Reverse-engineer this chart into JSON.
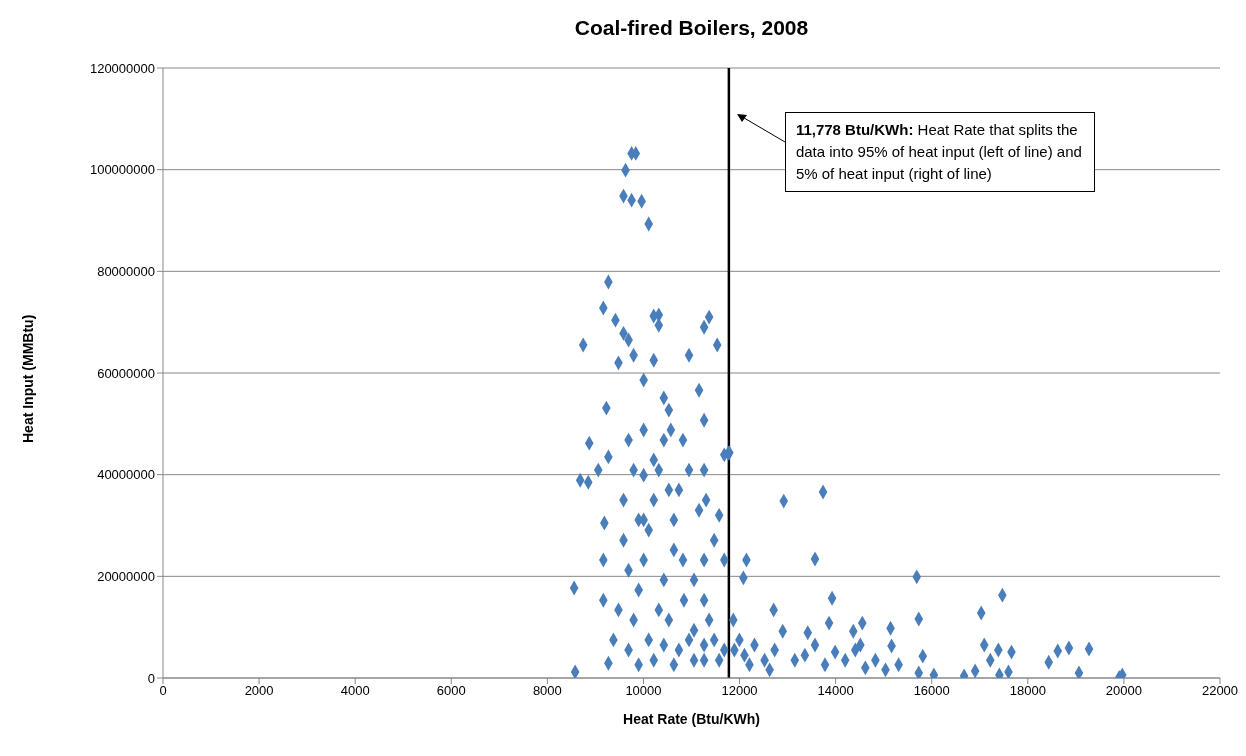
{
  "chart_data": {
    "type": "scatter",
    "title": "Coal-fired Boilers, 2008",
    "xlabel": "Heat Rate (Btu/KWh)",
    "ylabel": "Heat Input (MMBtu)",
    "xlim": [
      0,
      22000
    ],
    "xticks": [
      0,
      2000,
      4000,
      6000,
      8000,
      10000,
      12000,
      14000,
      16000,
      18000,
      20000,
      22000
    ],
    "ylim": [
      0,
      120000000
    ],
    "yticks": [
      0,
      20000000,
      40000000,
      60000000,
      80000000,
      100000000,
      120000000
    ],
    "grid": "y",
    "marker": "diamond",
    "legend": false,
    "ref_lines": [
      {
        "axis": "x",
        "value": 11778,
        "label": "11,778 Btu/KWh:  Heat Rate that splits the data into 95% of heat input (left of line) and 5% of heat input (right of line)",
        "color": "#000000"
      }
    ],
    "series": [
      {
        "color": "#4a7ebb",
        "x": [
          9753,
          9840,
          9627,
          9585,
          9753,
          9962,
          10109,
          9270,
          9165,
          9417,
          10214,
          10319,
          11367,
          11262,
          11535,
          8746,
          9585,
          9690,
          10319,
          9795,
          10214,
          10948,
          9480,
          10004,
          9228,
          10424,
          11157,
          11262,
          10570,
          10822,
          8872,
          9270,
          9690,
          8851,
          8683,
          9060,
          10214,
          10004,
          10528,
          11262,
          11682,
          11766,
          11304,
          11576,
          8557,
          9186,
          9585,
          9165,
          10004,
          10633,
          11262,
          11682,
          9165,
          9375,
          9270,
          8578,
          9900,
          11262,
          11787,
          12920,
          13738,
          12143,
          12080,
          13570,
          15688,
          13926,
          12710,
          11870,
          13863,
          14555,
          14367,
          15143,
          15730,
          17030,
          17470,
          12899,
          13420,
          15164,
          15814,
          17093,
          17387,
          17660,
          18435,
          18623,
          18855,
          19274,
          17219,
          16674,
          16904,
          17408,
          17597,
          19064,
          19966,
          19903,
          16045,
          15730,
          15311,
          12102,
          12311,
          12521,
          12731,
          13150,
          13360,
          13779,
          14199,
          14409,
          14618,
          14828,
          15038,
          11997,
          12206,
          12626,
          13570,
          13989,
          14514,
          9690,
          9795,
          9900,
          10004,
          10109,
          10214,
          10319,
          10424,
          10528,
          10109,
          10319,
          10424,
          10633,
          10738,
          10843,
          11052,
          11262,
          11472,
          11576,
          11052,
          10633,
          10214,
          10424,
          10738,
          10948,
          11262,
          11682,
          11367,
          11052,
          11472,
          11157,
          10948,
          10004,
          9795,
          9585,
          9690,
          9480,
          9900,
          10528,
          10822,
          11892
        ],
        "values": [
          103200000,
          103200000,
          99900000,
          94800000,
          94000000,
          93800000,
          89300000,
          77900000,
          72800000,
          70400000,
          71200000,
          71400000,
          71000000,
          69000000,
          65500000,
          65500000,
          67800000,
          66500000,
          69400000,
          63500000,
          62500000,
          63500000,
          62000000,
          58600000,
          53100000,
          55100000,
          56600000,
          50700000,
          48800000,
          46800000,
          46200000,
          43500000,
          46800000,
          38500000,
          38900000,
          40900000,
          42900000,
          39900000,
          37000000,
          40900000,
          43900000,
          44200000,
          35000000,
          32000000,
          17700000,
          30500000,
          27100000,
          23200000,
          31100000,
          25200000,
          23200000,
          23200000,
          15300000,
          7500000,
          2900000,
          1200000,
          2600000,
          3500000,
          44300000,
          34800000,
          36600000,
          23200000,
          19700000,
          23400000,
          19900000,
          15700000,
          13400000,
          11400000,
          10800000,
          10800000,
          9200000,
          9800000,
          11600000,
          12800000,
          16300000,
          9200000,
          8900000,
          6300000,
          4300000,
          6500000,
          5500000,
          5100000,
          3100000,
          5300000,
          5900000,
          5700000,
          3500000,
          400000,
          1400000,
          600000,
          1200000,
          1000000,
          600000,
          100000,
          600000,
          1000000,
          2600000,
          4500000,
          6500000,
          3500000,
          5500000,
          3500000,
          4500000,
          2600000,
          3500000,
          5500000,
          2000000,
          3500000,
          1600000,
          7500000,
          2600000,
          1600000,
          6500000,
          5100000,
          6500000,
          5500000,
          11400000,
          17300000,
          23200000,
          29100000,
          35000000,
          40900000,
          46800000,
          52700000,
          7500000,
          13400000,
          19300000,
          31100000,
          37000000,
          15300000,
          9400000,
          15300000,
          7500000,
          3500000,
          3500000,
          2600000,
          3500000,
          6500000,
          5500000,
          7500000,
          6500000,
          5500000,
          11400000,
          19300000,
          27100000,
          33000000,
          40900000,
          48800000,
          40900000,
          35000000,
          21200000,
          13400000,
          31100000,
          11400000,
          23200000,
          5500000
        ]
      }
    ]
  }
}
